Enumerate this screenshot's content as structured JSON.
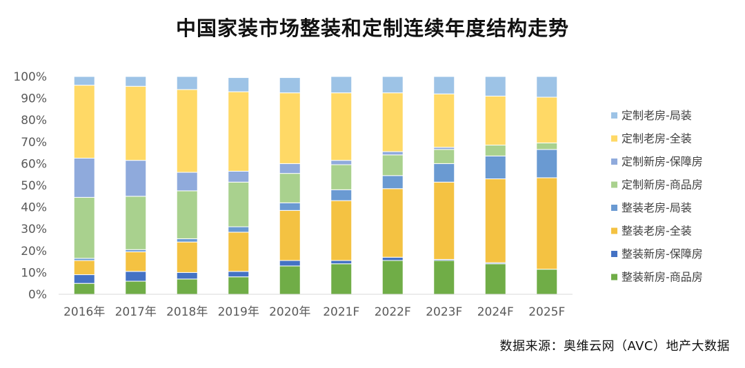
{
  "chart_data": {
    "type": "bar",
    "stacked": true,
    "percent": true,
    "title": "中国家装市场整装和定制连续年度结构走势",
    "categories": [
      "2016年",
      "2017年",
      "2018年",
      "2019年",
      "2020年",
      "2021F",
      "2022F",
      "2023F",
      "2024F",
      "2025F"
    ],
    "ylim": [
      0,
      100
    ],
    "yticks": [
      "0%",
      "10%",
      "20%",
      "30%",
      "40%",
      "50%",
      "60%",
      "70%",
      "80%",
      "90%",
      "100%"
    ],
    "grid": false,
    "legend_position": "right",
    "series": [
      {
        "name": "整装新房-商品房",
        "color": "#70ad47",
        "values": [
          5,
          6,
          7,
          8,
          13,
          14,
          15.5,
          15.5,
          14,
          11.5
        ]
      },
      {
        "name": "整装新房-保障房",
        "color": "#4472c4",
        "values": [
          4,
          4.5,
          3,
          2.5,
          2.5,
          1.5,
          1.5,
          0.5,
          0.5,
          0
        ]
      },
      {
        "name": "整装老房-全装",
        "color": "#f4c242",
        "values": [
          6.5,
          9,
          14,
          18,
          23,
          27.5,
          31.5,
          35.5,
          38.5,
          42
        ]
      },
      {
        "name": "整装老房-局装",
        "color": "#6a9ad2",
        "values": [
          1,
          1,
          1.5,
          2.5,
          3.5,
          5,
          6,
          8.5,
          10.5,
          13
        ]
      },
      {
        "name": "定制新房-商品房",
        "color": "#a9d18e",
        "values": [
          28,
          24.5,
          22,
          20.5,
          13.5,
          11.5,
          9.5,
          6.5,
          5,
          3
        ]
      },
      {
        "name": "定制新房-保障房",
        "color": "#8faadc",
        "values": [
          18,
          16.5,
          8.5,
          5,
          4.5,
          2,
          1.5,
          1,
          0,
          0
        ]
      },
      {
        "name": "定制老房-全装",
        "color": "#ffd966",
        "values": [
          33.5,
          34,
          38,
          36.5,
          32.5,
          31,
          27,
          24.5,
          22.5,
          21
        ]
      },
      {
        "name": "定制老房-局装",
        "color": "#9dc3e6",
        "values": [
          4,
          4.5,
          6,
          6.5,
          7,
          7.5,
          7.5,
          8,
          9,
          9.5
        ]
      }
    ]
  },
  "source": "数据来源：奥维云网（AVC）地产大数据"
}
